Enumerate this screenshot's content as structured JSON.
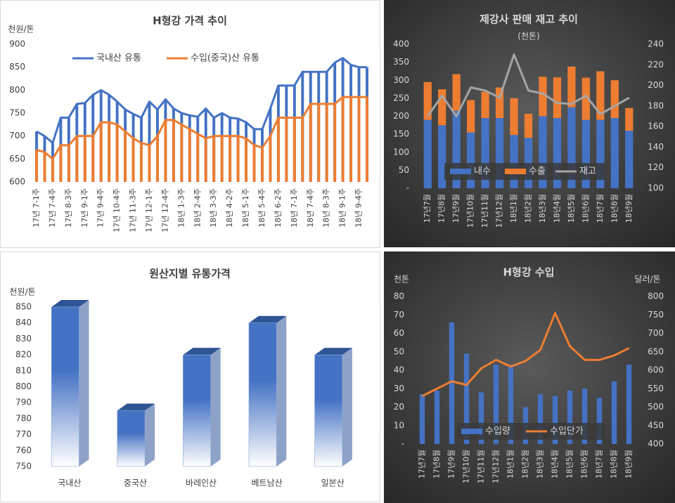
{
  "chart_data": [
    {
      "type": "line",
      "title": "H형강 가격 추이",
      "y_label": "천원/톤",
      "categories": [
        "17년 7-1주",
        null,
        "17년 7-4주",
        null,
        "17년 8-3주",
        null,
        "17년 9-1주",
        null,
        "17년 9-4주",
        null,
        "17년 10-4주",
        null,
        "17년 11-3주",
        null,
        "17년 12-1주",
        null,
        "17년 12-4주",
        null,
        "18년 1-3주",
        null,
        "18년 2-4주",
        null,
        "18년 3-3주",
        null,
        "18년 4-2주",
        null,
        "18년 5-1주",
        null,
        "18년 5-4주",
        null,
        "18년 6-2주",
        null,
        "18년 7-1주",
        null,
        "18년 7-4주",
        null,
        "18년 8-3주",
        null,
        "18년 9-1주",
        null,
        "18년 9-4주",
        null
      ],
      "series": [
        {
          "name": "국내산 유통",
          "color": "#4472c4",
          "values": [
            710,
            700,
            685,
            740,
            740,
            770,
            772,
            790,
            800,
            790,
            775,
            758,
            748,
            740,
            775,
            758,
            780,
            760,
            750,
            745,
            742,
            760,
            740,
            750,
            740,
            738,
            730,
            715,
            715,
            760,
            810,
            810,
            810,
            840,
            840,
            840,
            840,
            860,
            870,
            855,
            850,
            850
          ]
        },
        {
          "name": "수입(중국)산 유통",
          "color": "#ed7d31",
          "values": [
            670,
            665,
            650,
            680,
            680,
            700,
            700,
            700,
            730,
            730,
            725,
            710,
            695,
            685,
            680,
            700,
            735,
            735,
            725,
            715,
            705,
            695,
            700,
            700,
            700,
            700,
            695,
            680,
            675,
            700,
            740,
            740,
            740,
            740,
            770,
            770,
            770,
            770,
            785,
            785,
            785,
            785
          ]
        }
      ],
      "ylim": [
        600,
        900
      ],
      "yticks": [
        600,
        650,
        700,
        750,
        800,
        850,
        900
      ],
      "grid": false,
      "legend": "top"
    },
    {
      "type": "bar",
      "stacked": true,
      "title": "제강사 판매 재고 추이",
      "subtitle": "(천톤)",
      "categories": [
        "17년7월",
        "17년8월",
        "17년9월",
        "17년10월",
        "17년11월",
        "17년12월",
        "18년1월",
        "18년2월",
        "18년3월",
        "18년4월",
        "18년5월",
        "18년6월",
        "18년7월",
        "18년8월",
        "18년9월"
      ],
      "series": [
        {
          "name": "내수",
          "color": "#4472c4",
          "values": [
            190,
            175,
            215,
            155,
            195,
            195,
            148,
            140,
            200,
            195,
            225,
            190,
            190,
            195,
            160
          ]
        },
        {
          "name": "수출",
          "color": "#ed7d31",
          "values": [
            105,
            100,
            102,
            90,
            73,
            85,
            102,
            67,
            110,
            113,
            113,
            117,
            135,
            105,
            63
          ]
        },
        {
          "name": "재고",
          "color": "#a5a5a5",
          "type": "line",
          "axis": "y2",
          "values": [
            170,
            190,
            170,
            198,
            195,
            188,
            230,
            195,
            192,
            183,
            182,
            190,
            172,
            180,
            188
          ]
        }
      ],
      "ylim": [
        0,
        400
      ],
      "yticks": [
        {
          "value": 0,
          "label": "-"
        },
        50,
        100,
        150,
        200,
        250,
        300,
        350,
        400
      ],
      "y2lim": [
        100,
        240
      ],
      "y2ticks": [
        100,
        120,
        140,
        160,
        180,
        200,
        220,
        240
      ],
      "grid": false,
      "legend": "bottom"
    },
    {
      "type": "bar",
      "three_d": true,
      "title": "원산지별 유통가격",
      "y_label": "천원/톤",
      "categories": [
        "국내산",
        "중국산",
        "바레인산",
        "베트남산",
        "일본산"
      ],
      "values": [
        850,
        785,
        820,
        840,
        820
      ],
      "color": "#4472c4",
      "ylim": [
        750,
        850
      ],
      "yticks": [
        750,
        760,
        770,
        780,
        790,
        800,
        810,
        820,
        830,
        840,
        850
      ],
      "grid": false
    },
    {
      "type": "bar",
      "title": "H형강 수입",
      "y_label": "천톤",
      "y2_label": "달러/톤",
      "categories": [
        "17년7월",
        "17년8월",
        "17년9월",
        "17년10월",
        "17년11월",
        "17년12월",
        "18년1월",
        "18년2월",
        "18년3월",
        "18년4월",
        "18년5월",
        "18년6월",
        "18년7월",
        "18년8월",
        "18년9월"
      ],
      "series": [
        {
          "name": "수입량",
          "color": "#4472c4",
          "values": [
            27,
            29,
            66,
            49,
            28,
            43,
            43,
            20,
            27,
            26,
            29,
            30,
            25,
            34,
            43
          ]
        },
        {
          "name": "수입단가",
          "color": "#ed7d31",
          "type": "line",
          "axis": "y2",
          "values": [
            530,
            550,
            570,
            560,
            605,
            628,
            610,
            625,
            655,
            755,
            665,
            628,
            628,
            640,
            660
          ]
        }
      ],
      "ylim": [
        0,
        80
      ],
      "yticks": [
        {
          "value": 0,
          "label": "-"
        },
        10,
        20,
        30,
        40,
        50,
        60,
        70,
        80
      ],
      "y2lim": [
        400,
        800
      ],
      "y2ticks": [
        400,
        450,
        500,
        550,
        600,
        650,
        700,
        750,
        800
      ],
      "grid": false,
      "legend": "bottom"
    }
  ]
}
